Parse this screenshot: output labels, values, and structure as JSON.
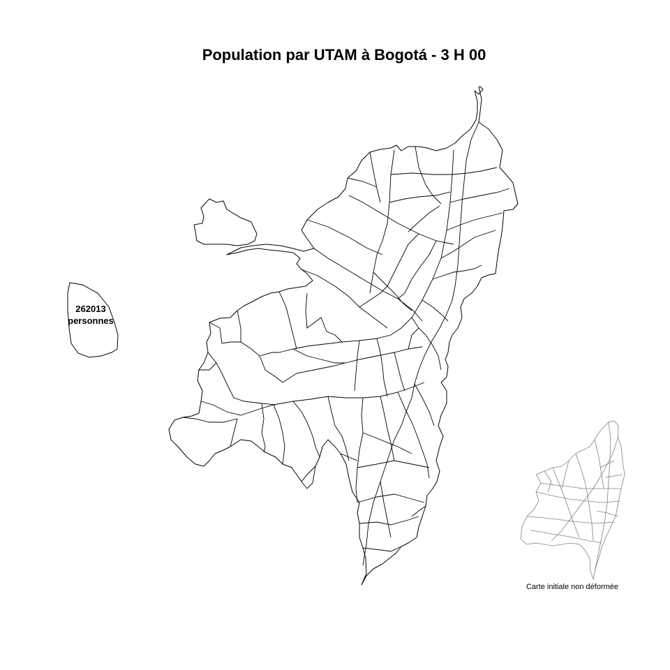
{
  "title": "Population par UTAM à Bogotá - 3 H 00",
  "legend": {
    "value": "262013",
    "unit": "personnes"
  },
  "inset": {
    "caption": "Carte initiale non déformée"
  },
  "colors": {
    "stroke_main": "#000000",
    "stroke_inset": "#808080",
    "background": "#ffffff"
  }
}
